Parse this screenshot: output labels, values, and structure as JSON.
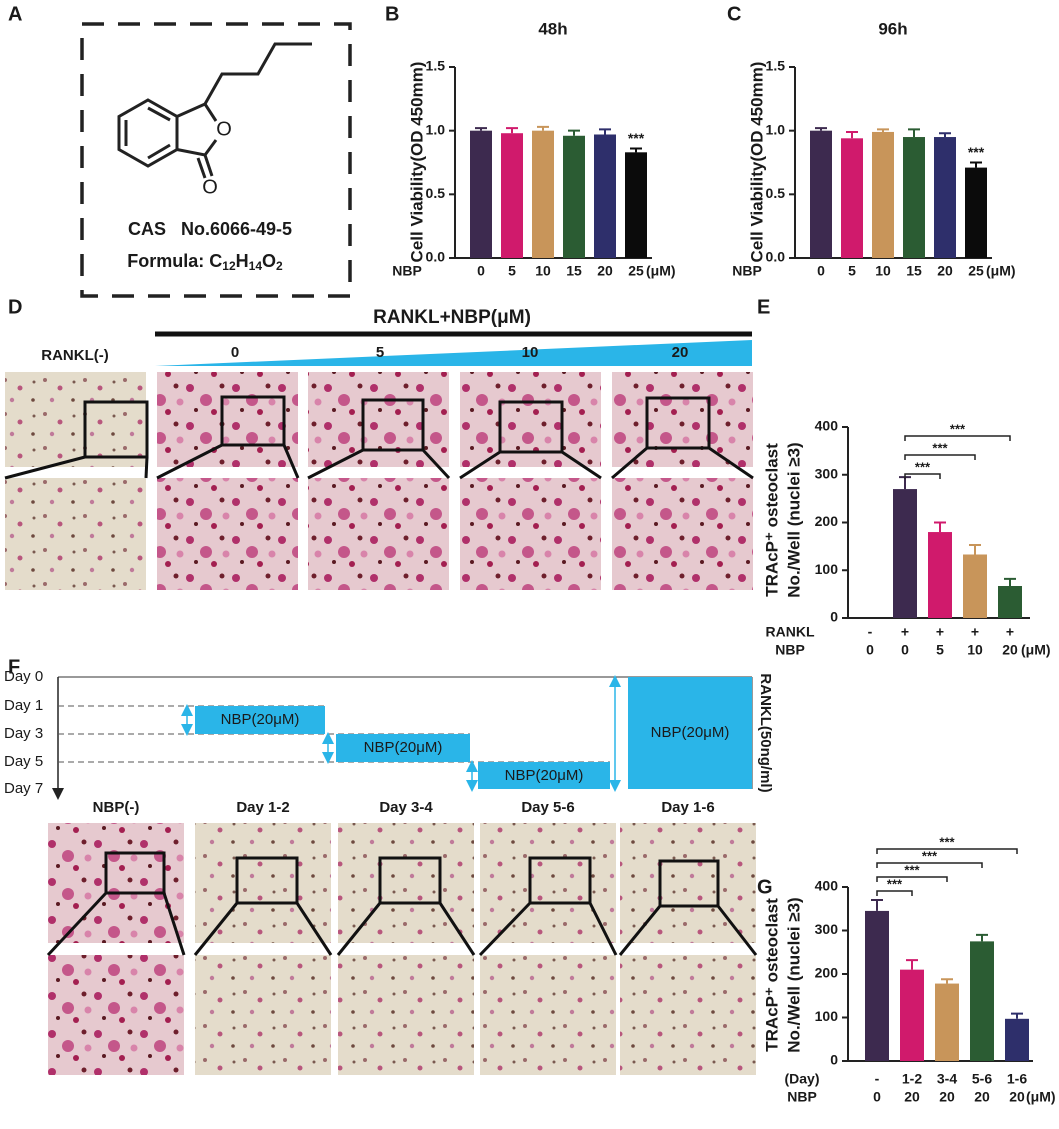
{
  "panel_labels": [
    "A",
    "B",
    "C",
    "D",
    "E",
    "F",
    "G"
  ],
  "structure": {
    "atoms": [
      "O",
      "O"
    ],
    "cas": "CAS   No.6066-49-5",
    "formula": [
      "Formula: C",
      "12",
      "H",
      "14",
      "O",
      "2"
    ]
  },
  "micrographs_d": {
    "header": "RANKL+NBP(μM)",
    "control": "RANKL(-)",
    "doses": [
      "0",
      "5",
      "10",
      "20"
    ]
  },
  "timeline_f": {
    "days": [
      "Day 0",
      "Day 1",
      "Day 3",
      "Day 5",
      "Day 7"
    ],
    "bars": [
      "NBP(20μM)",
      "NBP(20μM)",
      "NBP(20μM)",
      "NBP(20μM)"
    ],
    "side_label": "RANKL(50ng/ml)",
    "groups": [
      "NBP(-)",
      "Day 1-2",
      "Day 3-4",
      "Day 5-6",
      "Day 1-6"
    ]
  },
  "chart_data": [
    {
      "type": "bar",
      "title": "48h",
      "y_label": [
        "Cell Viability(OD 450mm)"
      ],
      "rows": [
        {
          "name": "NBP",
          "labels": [
            "0",
            "5",
            "10",
            "15",
            "20",
            "25"
          ]
        }
      ],
      "x_unit": "(μM)",
      "values": [
        1.0,
        0.98,
        1.0,
        0.96,
        0.97,
        0.83
      ],
      "errors": [
        0.02,
        0.04,
        0.03,
        0.04,
        0.04,
        0.03
      ],
      "colors": [
        "#3d2a4f",
        "#d01a6c",
        "#c8955a",
        "#2b5c33",
        "#2e2f6b",
        "#0b0b0b"
      ],
      "significance": [
        null,
        null,
        null,
        null,
        null,
        "***"
      ],
      "ylim": [
        0,
        1.5
      ],
      "yticks": [
        {
          "value": 0,
          "label": "0.0"
        },
        0.5,
        {
          "value": 1,
          "label": "1.0"
        },
        1.5
      ]
    },
    {
      "type": "bar",
      "title": "96h",
      "y_label": [
        "Cell Viability(OD 450mm)"
      ],
      "rows": [
        {
          "name": "NBP",
          "labels": [
            "0",
            "5",
            "10",
            "15",
            "20",
            "25"
          ]
        }
      ],
      "x_unit": "(μM)",
      "values": [
        1.0,
        0.94,
        0.99,
        0.95,
        0.95,
        0.71
      ],
      "errors": [
        0.02,
        0.05,
        0.02,
        0.06,
        0.03,
        0.04
      ],
      "colors": [
        "#3d2a4f",
        "#d01a6c",
        "#c8955a",
        "#2b5c33",
        "#2e2f6b",
        "#0b0b0b"
      ],
      "significance": [
        null,
        null,
        null,
        null,
        null,
        "***"
      ],
      "ylim": [
        0,
        1.5
      ],
      "yticks": [
        {
          "value": 0,
          "label": "0.0"
        },
        0.5,
        {
          "value": 1,
          "label": "1.0"
        },
        1.5
      ]
    },
    {
      "type": "bar",
      "y_label": [
        "TRAcP⁺ osteoclast",
        "No./Well (nuclei ≥3)"
      ],
      "rows": [
        {
          "name": "RANKL",
          "labels": [
            "-",
            "+",
            "+",
            "+",
            "+"
          ]
        },
        {
          "name": "NBP",
          "labels": [
            "0",
            "0",
            "5",
            "10",
            "20"
          ]
        }
      ],
      "x_unit": "(μM)",
      "values": [
        null,
        270,
        180,
        133,
        67
      ],
      "errors": [
        null,
        25,
        20,
        20,
        15
      ],
      "colors": [
        "#3d2a4f",
        "#3d2a4f",
        "#d01a6c",
        "#c8955a",
        "#2b5c33"
      ],
      "brackets": [
        {
          "span": [
            1,
            2
          ],
          "label": "***"
        },
        {
          "span": [
            1,
            3
          ],
          "label": "***"
        },
        {
          "span": [
            1,
            4
          ],
          "label": "***"
        }
      ],
      "ylim": [
        0,
        400
      ],
      "yticks": [
        0,
        100,
        200,
        300,
        400
      ]
    },
    {
      "type": "bar",
      "y_label": [
        "TRAcP⁺ osteoclast",
        "No./Well (nuclei ≥3)"
      ],
      "rows": [
        {
          "name": "(Day)",
          "labels": [
            "-",
            "1-2",
            "3-4",
            "5-6",
            "1-6"
          ]
        },
        {
          "name": "NBP",
          "labels": [
            "0",
            "20",
            "20",
            "20",
            "20"
          ]
        }
      ],
      "x_unit": "(μM)",
      "values": [
        345,
        210,
        178,
        275,
        97
      ],
      "errors": [
        25,
        22,
        10,
        15,
        12
      ],
      "colors": [
        "#3d2a4f",
        "#d01a6c",
        "#c8955a",
        "#2b5c33",
        "#2e2f6b"
      ],
      "brackets": [
        {
          "span": [
            0,
            1
          ],
          "label": "***"
        },
        {
          "span": [
            0,
            2
          ],
          "label": "***"
        },
        {
          "span": [
            0,
            3
          ],
          "label": "***"
        },
        {
          "span": [
            0,
            4
          ],
          "label": "***"
        }
      ],
      "ylim": [
        0,
        400
      ],
      "yticks": [
        0,
        100,
        200,
        300,
        400
      ]
    }
  ]
}
